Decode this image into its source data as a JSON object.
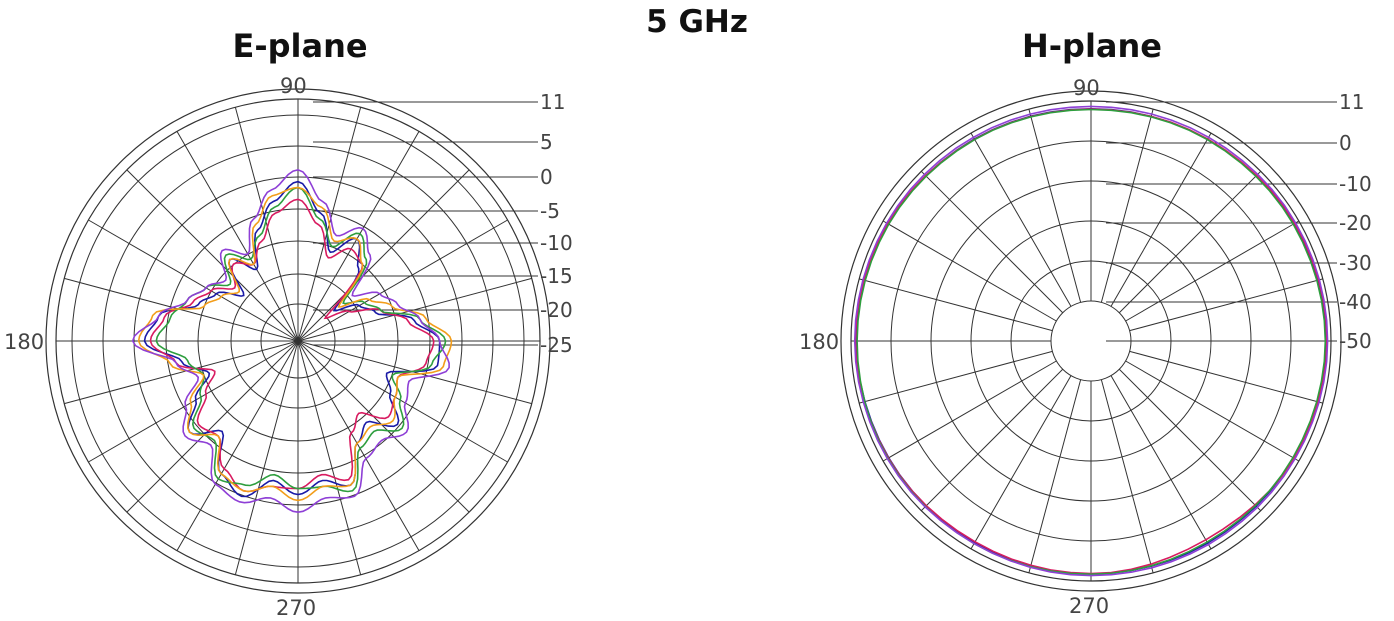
{
  "figure": {
    "title": "5 GHz"
  },
  "chart_data": [
    {
      "type": "line",
      "projection": "polar",
      "title": "E-plane",
      "angle_labels": {
        "a90": "90",
        "a180": "180",
        "a270": "270"
      },
      "radial_ticks": [
        "11",
        "5",
        "0",
        "-5",
        "-10",
        "-15",
        "-20",
        "-25"
      ],
      "rlim": [
        -30,
        11
      ],
      "angular_grid_step_deg": 15,
      "grid": true,
      "series_colors": [
        "#1a1aa6",
        "#d81b60",
        "#2e9e3e",
        "#f29d1a",
        "#8e3fd6",
        "#3fae6e",
        "#8a5a2a"
      ],
      "series": [
        {
          "name": "",
          "color": "#1a1aa6",
          "theta": [
            0,
            10,
            20,
            30,
            40,
            50,
            60,
            70,
            80,
            90,
            100,
            110,
            120,
            130,
            140,
            150,
            160,
            170,
            180,
            190,
            200,
            210,
            220,
            230,
            240,
            250,
            260,
            270,
            280,
            290,
            300,
            310,
            320,
            330,
            340,
            350
          ],
          "r_dB": [
            -6,
            -10,
            -16,
            -18,
            -22,
            -14,
            -10,
            -14,
            -8,
            -3,
            -6,
            -10,
            -16,
            -12,
            -18,
            -14,
            -12,
            -6,
            -4,
            -10,
            -14,
            -10,
            -6,
            -10,
            -4,
            -2,
            -6,
            -4,
            -6,
            -4,
            -10,
            -12,
            -8,
            -12,
            -14,
            -6
          ]
        },
        {
          "name": "",
          "color": "#d81b60",
          "theta": [
            0,
            10,
            20,
            30,
            40,
            50,
            60,
            70,
            80,
            90,
            100,
            110,
            120,
            130,
            140,
            150,
            160,
            170,
            180,
            190,
            200,
            210,
            220,
            230,
            240,
            250,
            260,
            270,
            280,
            290,
            300,
            310,
            320,
            330,
            340,
            350
          ],
          "r_dB": [
            -7,
            -11,
            -15,
            -20,
            -24,
            -13,
            -12,
            -15,
            -10,
            -6,
            -8,
            -12,
            -15,
            -13,
            -16,
            -13,
            -11,
            -7,
            -5,
            -9,
            -15,
            -12,
            -8,
            -9,
            -5,
            -3,
            -5,
            -5,
            -7,
            -5,
            -12,
            -14,
            -10,
            -11,
            -12,
            -8
          ]
        },
        {
          "name": "",
          "color": "#2e9e3e",
          "theta": [
            0,
            10,
            20,
            30,
            40,
            50,
            60,
            70,
            80,
            90,
            100,
            110,
            120,
            130,
            140,
            150,
            160,
            170,
            180,
            190,
            200,
            210,
            220,
            230,
            240,
            250,
            260,
            270,
            280,
            290,
            300,
            310,
            320,
            330,
            340,
            350
          ],
          "r_dB": [
            -5,
            -9,
            -15,
            -17,
            -20,
            -12,
            -9,
            -13,
            -9,
            -4,
            -7,
            -11,
            -14,
            -11,
            -15,
            -12,
            -10,
            -8,
            -6,
            -11,
            -13,
            -11,
            -7,
            -8,
            -3,
            -4,
            -7,
            -5,
            -5,
            -3,
            -9,
            -10,
            -7,
            -10,
            -13,
            -7
          ]
        },
        {
          "name": "",
          "color": "#f29d1a",
          "theta": [
            0,
            10,
            20,
            30,
            40,
            50,
            60,
            70,
            80,
            90,
            100,
            110,
            120,
            130,
            140,
            150,
            160,
            170,
            180,
            190,
            200,
            210,
            220,
            230,
            240,
            250,
            260,
            270,
            280,
            290,
            300,
            310,
            320,
            330,
            340,
            350
          ],
          "r_dB": [
            -4,
            -8,
            -13,
            -16,
            -21,
            -13,
            -10,
            -12,
            -7,
            -4,
            -5,
            -9,
            -15,
            -12,
            -17,
            -15,
            -13,
            -5,
            -3,
            -8,
            -13,
            -9,
            -6,
            -9,
            -4,
            -3,
            -5,
            -3,
            -5,
            -4,
            -10,
            -11,
            -9,
            -11,
            -12,
            -5
          ]
        },
        {
          "name": "",
          "color": "#8e3fd6",
          "theta": [
            0,
            10,
            20,
            30,
            40,
            50,
            60,
            70,
            80,
            90,
            100,
            110,
            120,
            130,
            140,
            150,
            160,
            170,
            180,
            190,
            200,
            210,
            220,
            230,
            240,
            250,
            260,
            270,
            280,
            290,
            300,
            310,
            320,
            330,
            340,
            350
          ],
          "r_dB": [
            -6,
            -9,
            -12,
            -14,
            -18,
            -11,
            -8,
            -11,
            -6,
            -1,
            -4,
            -8,
            -13,
            -10,
            -14,
            -12,
            -10,
            -6,
            -2,
            -9,
            -12,
            -8,
            -5,
            -7,
            -2,
            -1,
            -3,
            -1,
            -3,
            -2,
            -7,
            -8,
            -6,
            -9,
            -10,
            -4
          ]
        }
      ]
    },
    {
      "type": "line",
      "projection": "polar",
      "title": "H-plane",
      "angle_labels": {
        "a90": "90",
        "a180": "180",
        "a270": "270"
      },
      "radial_ticks": [
        "11",
        "0",
        "-10",
        "-20",
        "-30",
        "-40",
        "-50"
      ],
      "rlim": [
        -60,
        11
      ],
      "angular_grid_step_deg": 15,
      "grid": true,
      "series": [
        {
          "name": "",
          "color": "#1a1aa6",
          "theta": [
            0,
            30,
            60,
            90,
            120,
            150,
            180,
            210,
            240,
            270,
            300,
            330
          ],
          "r_dB": [
            9.5,
            9.3,
            8.9,
            8.7,
            9.0,
            9.3,
            9.4,
            9.1,
            8.8,
            8.9,
            9.0,
            9.2
          ]
        },
        {
          "name": "",
          "color": "#d81b60",
          "theta": [
            0,
            30,
            60,
            90,
            120,
            150,
            180,
            210,
            240,
            270,
            300,
            330
          ],
          "r_dB": [
            9.8,
            9.6,
            9.0,
            8.6,
            8.9,
            9.4,
            9.7,
            9.2,
            8.6,
            8.8,
            7.9,
            9.3
          ]
        },
        {
          "name": "",
          "color": "#2e9e3e",
          "theta": [
            0,
            30,
            60,
            90,
            120,
            150,
            180,
            210,
            240,
            270,
            300,
            330
          ],
          "r_dB": [
            9.3,
            9.1,
            8.8,
            8.5,
            8.8,
            9.1,
            9.2,
            9.4,
            9.2,
            9.0,
            8.7,
            9.0
          ]
        },
        {
          "name": "",
          "color": "#8e3fd6",
          "theta": [
            0,
            30,
            60,
            90,
            120,
            150,
            180,
            210,
            240,
            270,
            300,
            330
          ],
          "r_dB": [
            10.0,
            9.9,
            9.6,
            9.4,
            9.6,
            9.8,
            9.9,
            9.6,
            9.2,
            9.4,
            9.5,
            9.7
          ]
        }
      ]
    }
  ]
}
